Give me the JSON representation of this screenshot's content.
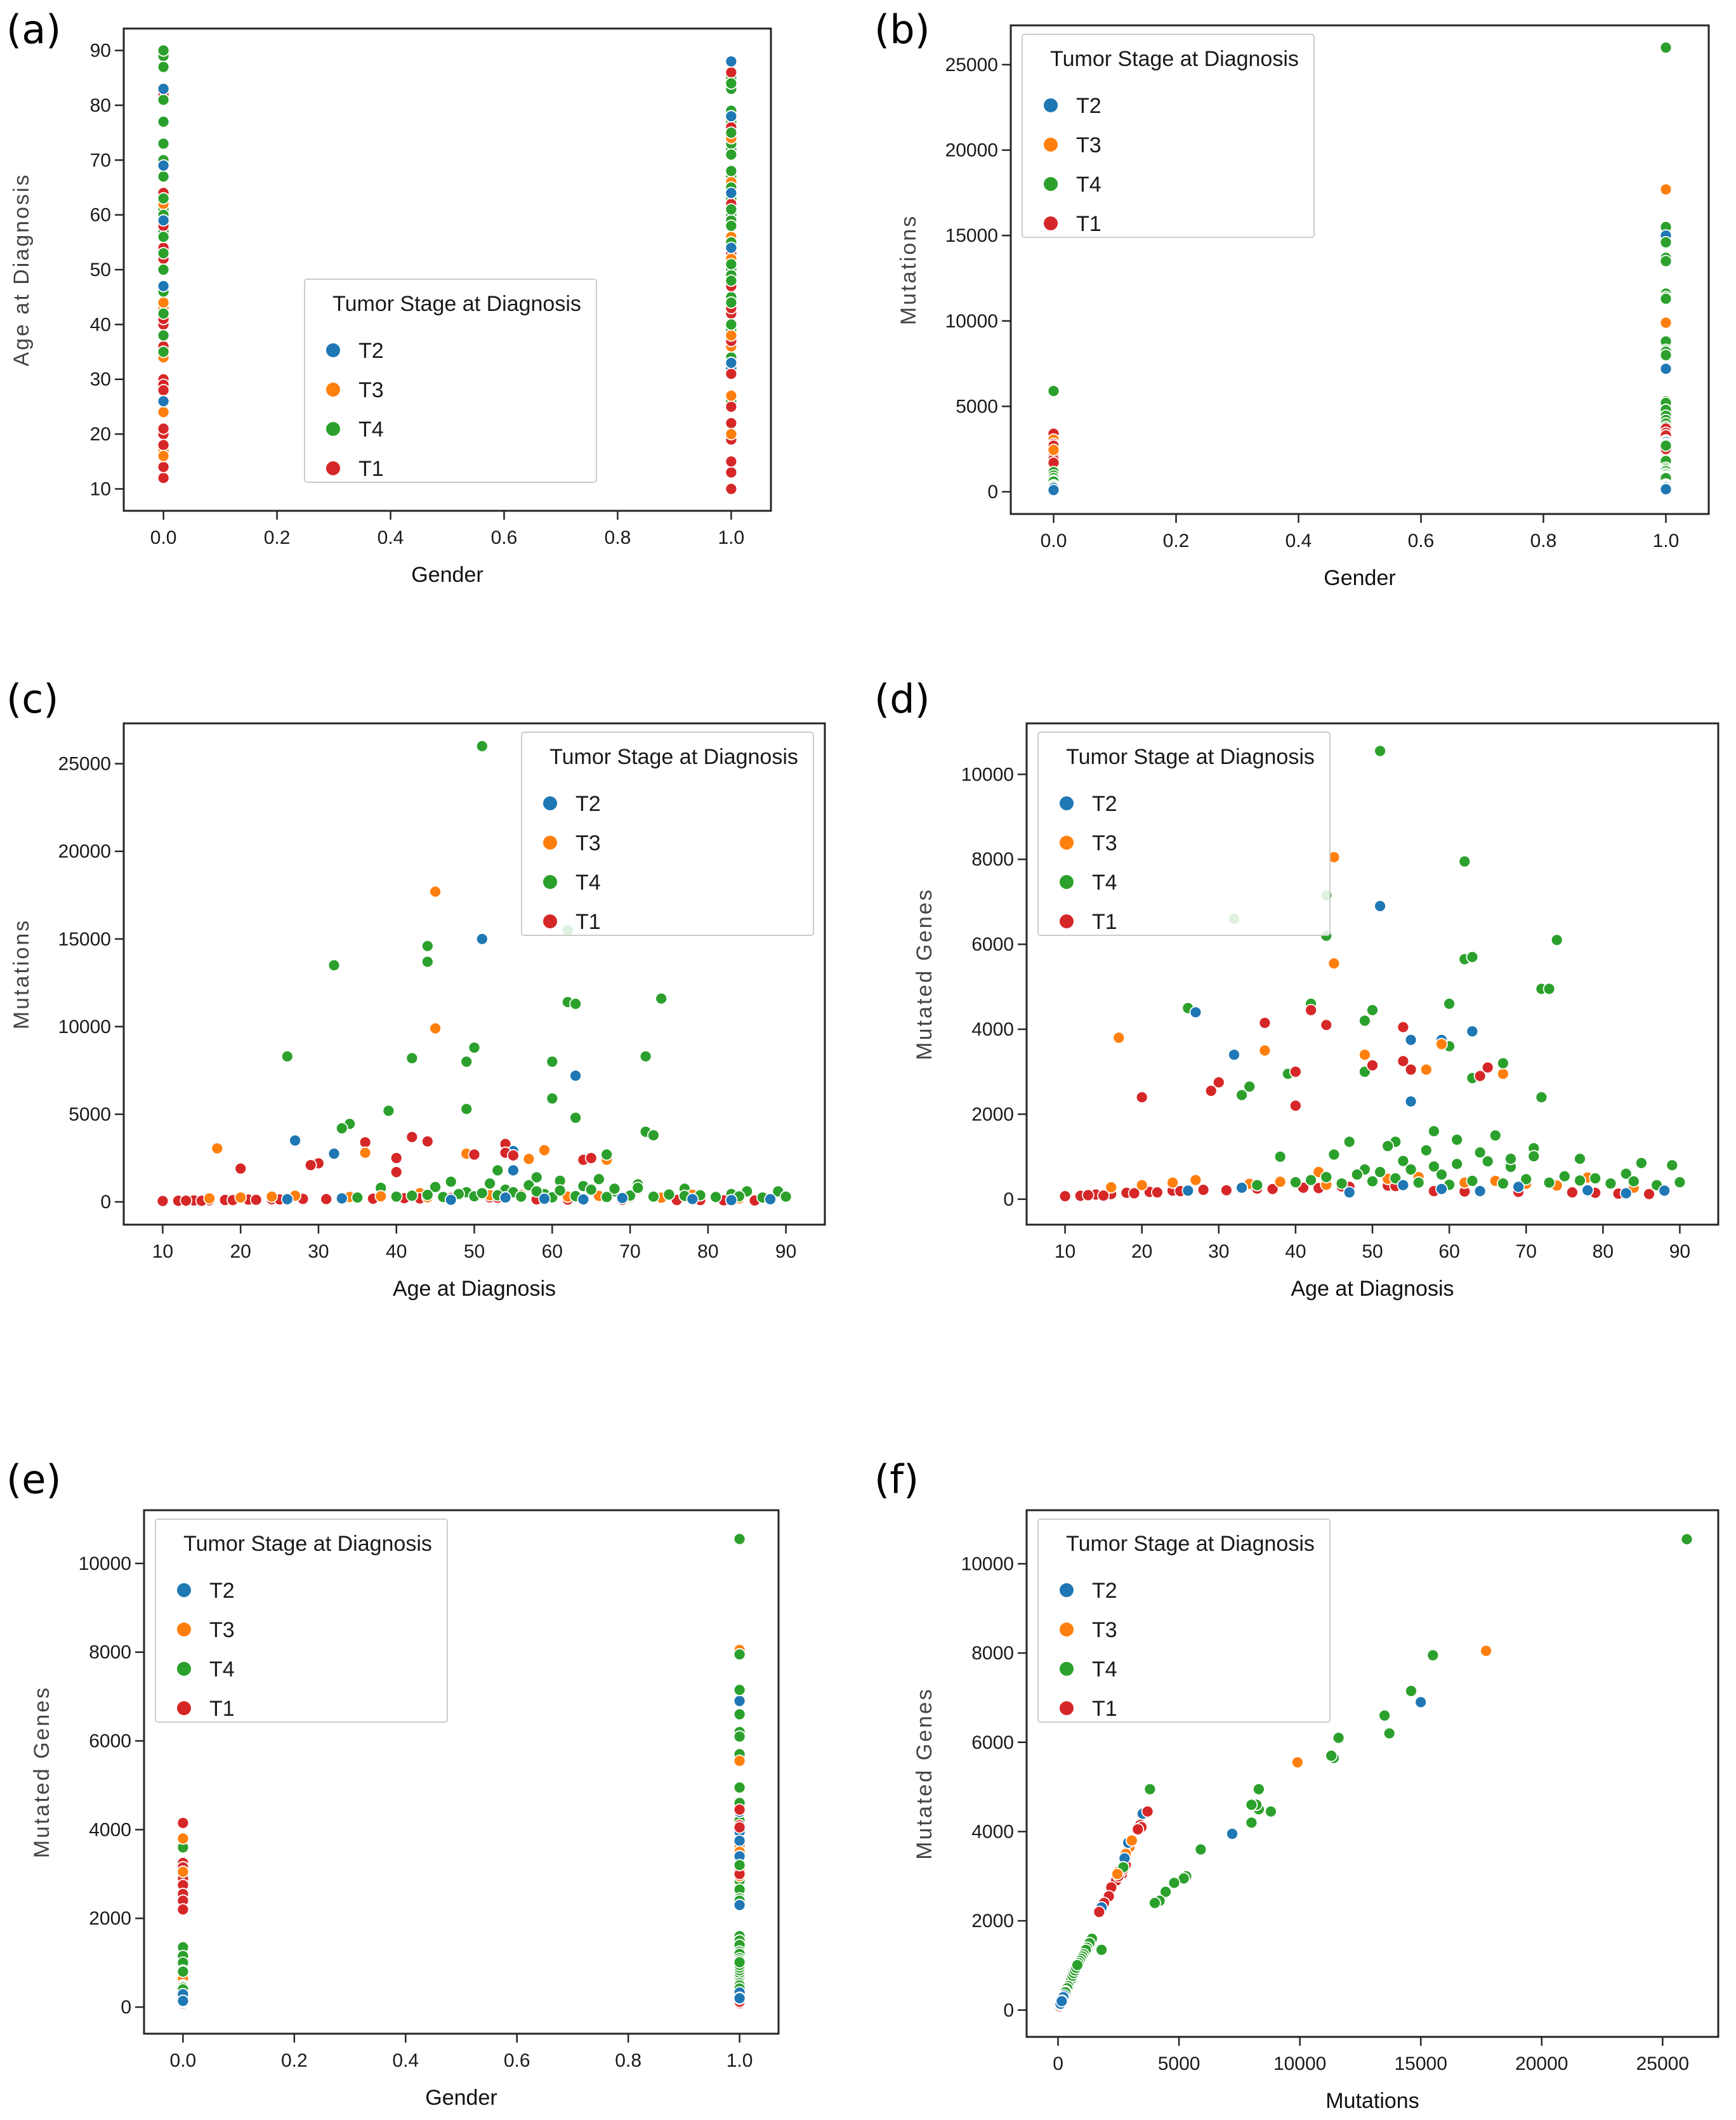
{
  "figure": {
    "background": "#ffffff",
    "border_color": "#262626",
    "tick_color": "#1a1a1a",
    "axis_label_color": "#111111",
    "y_label_color": "#444444",
    "legend_border": "#cccccc",
    "legend_bg_alpha": 0.85
  },
  "chart_data": {
    "type": "scatter",
    "legend_title": "Tumor Stage at Diagnosis",
    "legend_position_by_panel": [
      "center",
      "upper-left",
      "upper-right",
      "upper-left",
      "upper-left",
      "upper-left"
    ],
    "stages": [
      {
        "name": "T2",
        "color": "#1f77b4"
      },
      {
        "name": "T3",
        "color": "#ff7f0e"
      },
      {
        "name": "T4",
        "color": "#2ca02c"
      },
      {
        "name": "T1",
        "color": "#d62728"
      }
    ],
    "fields": [
      "stage",
      "gender",
      "age_at_diagnosis",
      "mutations",
      "mutated_genes"
    ],
    "patients": [
      [
        "T4",
        1,
        51,
        26000,
        10550
      ],
      [
        "T3",
        1,
        45,
        17700,
        8050
      ],
      [
        "T4",
        1,
        62,
        15500,
        7950
      ],
      [
        "T2",
        1,
        51,
        15000,
        6900
      ],
      [
        "T4",
        1,
        44,
        14600,
        7150
      ],
      [
        "T4",
        1,
        44,
        13700,
        6200
      ],
      [
        "T4",
        1,
        32,
        13500,
        6600
      ],
      [
        "T4",
        1,
        74,
        11600,
        6100
      ],
      [
        "T4",
        1,
        62,
        11400,
        5650
      ],
      [
        "T4",
        1,
        63,
        11300,
        5700
      ],
      [
        "T3",
        1,
        45,
        9900,
        5550
      ],
      [
        "T4",
        1,
        50,
        8800,
        4450
      ],
      [
        "T4",
        1,
        26,
        8300,
        4500
      ],
      [
        "T4",
        1,
        72,
        8300,
        4950
      ],
      [
        "T4",
        1,
        42,
        8200,
        4600
      ],
      [
        "T4",
        1,
        49,
        8000,
        4200
      ],
      [
        "T4",
        1,
        60,
        8000,
        4600
      ],
      [
        "T2",
        1,
        63,
        7200,
        3950
      ],
      [
        "T4",
        0,
        60,
        5900,
        3600
      ],
      [
        "T4",
        1,
        49,
        5300,
        3000
      ],
      [
        "T4",
        1,
        39,
        5200,
        2950
      ],
      [
        "T4",
        1,
        63,
        4800,
        2850
      ],
      [
        "T4",
        1,
        34,
        4450,
        2650
      ],
      [
        "T4",
        1,
        33,
        4200,
        2450
      ],
      [
        "T4",
        1,
        72,
        4000,
        2400
      ],
      [
        "T4",
        1,
        73,
        3800,
        4950
      ],
      [
        "T2",
        1,
        27,
        3500,
        4400
      ],
      [
        "T1",
        0,
        36,
        3400,
        4150
      ],
      [
        "T1",
        1,
        42,
        3700,
        4450
      ],
      [
        "T1",
        1,
        44,
        3450,
        4100
      ],
      [
        "T1",
        1,
        54,
        3300,
        4050
      ],
      [
        "T2",
        1,
        59,
        3000,
        3750
      ],
      [
        "T3",
        1,
        59,
        2950,
        3650
      ],
      [
        "T2",
        1,
        55,
        2900,
        3750
      ],
      [
        "T3",
        0,
        17,
        3050,
        3800
      ],
      [
        "T3",
        1,
        36,
        2800,
        3500
      ],
      [
        "T3",
        1,
        49,
        2750,
        3400
      ],
      [
        "T1",
        0,
        54,
        2800,
        3250
      ],
      [
        "T1",
        1,
        55,
        2650,
        3050
      ],
      [
        "T1",
        0,
        50,
        2700,
        3150
      ],
      [
        "T3",
        1,
        67,
        2400,
        2950
      ],
      [
        "T1",
        0,
        64,
        2400,
        2900
      ],
      [
        "T1",
        1,
        65,
        2500,
        3100
      ],
      [
        "T1",
        0,
        30,
        2200,
        2750
      ],
      [
        "T1",
        0,
        29,
        2100,
        2550
      ],
      [
        "T1",
        0,
        20,
        1900,
        2400
      ],
      [
        "T2",
        1,
        32,
        2750,
        3400
      ],
      [
        "T2",
        1,
        55,
        1800,
        2300
      ],
      [
        "T1",
        1,
        40,
        2500,
        3000
      ],
      [
        "T1",
        0,
        40,
        1700,
        2200
      ],
      [
        "T4",
        1,
        67,
        2700,
        3200
      ],
      [
        "T3",
        0,
        57,
        2450,
        3050
      ],
      [
        "T4",
        1,
        53,
        1800,
        1350
      ],
      [
        "T4",
        1,
        58,
        1400,
        1600
      ],
      [
        "T4",
        1,
        66,
        1300,
        1500
      ],
      [
        "T4",
        1,
        61,
        1200,
        1400
      ],
      [
        "T4",
        0,
        47,
        1150,
        1350
      ],
      [
        "T4",
        1,
        52,
        1050,
        1250
      ],
      [
        "T4",
        1,
        71,
        1000,
        1200
      ],
      [
        "T4",
        0,
        57,
        950,
        1150
      ],
      [
        "T4",
        1,
        64,
        900,
        1100
      ],
      [
        "T4",
        1,
        45,
        850,
        1050
      ],
      [
        "T4",
        0,
        38,
        800,
        1000
      ],
      [
        "T4",
        1,
        77,
        750,
        950
      ],
      [
        "T4",
        1,
        54,
        700,
        900
      ],
      [
        "T4",
        0,
        61,
        650,
        820
      ],
      [
        "T4",
        1,
        68,
        600,
        760
      ],
      [
        "T4",
        1,
        49,
        550,
        700
      ],
      [
        "T3",
        0,
        43,
        500,
        640
      ],
      [
        "T4",
        1,
        59,
        450,
        580
      ],
      [
        "T3",
        1,
        56,
        400,
        520
      ],
      [
        "T4",
        1,
        85,
        600,
        850
      ],
      [
        "T4",
        1,
        83,
        450,
        600
      ],
      [
        "T4",
        0,
        89,
        600,
        800
      ],
      [
        "T1",
        0,
        12,
        60,
        80
      ],
      [
        "T1",
        1,
        10,
        50,
        70
      ],
      [
        "T1",
        0,
        14,
        80,
        110
      ],
      [
        "T1",
        1,
        13,
        70,
        95
      ],
      [
        "T1",
        0,
        16,
        90,
        120
      ],
      [
        "T1",
        1,
        15,
        60,
        85
      ],
      [
        "T1",
        0,
        18,
        110,
        150
      ],
      [
        "T1",
        1,
        19,
        100,
        140
      ],
      [
        "T1",
        0,
        21,
        130,
        170
      ],
      [
        "T1",
        1,
        22,
        120,
        160
      ],
      [
        "T1",
        0,
        24,
        150,
        200
      ],
      [
        "T1",
        1,
        25,
        140,
        190
      ],
      [
        "T1",
        0,
        28,
        170,
        220
      ],
      [
        "T1",
        1,
        31,
        160,
        210
      ],
      [
        "T1",
        0,
        35,
        190,
        250
      ],
      [
        "T1",
        1,
        37,
        180,
        240
      ],
      [
        "T1",
        0,
        41,
        210,
        270
      ],
      [
        "T1",
        1,
        43,
        200,
        260
      ],
      [
        "T1",
        0,
        46,
        230,
        300
      ],
      [
        "T1",
        1,
        47,
        220,
        290
      ],
      [
        "T1",
        0,
        52,
        250,
        320
      ],
      [
        "T1",
        1,
        53,
        240,
        310
      ],
      [
        "T1",
        0,
        58,
        140,
        190
      ],
      [
        "T1",
        1,
        62,
        130,
        180
      ],
      [
        "T1",
        0,
        69,
        120,
        170
      ],
      [
        "T1",
        1,
        76,
        110,
        160
      ],
      [
        "T1",
        1,
        79,
        100,
        150
      ],
      [
        "T1",
        0,
        82,
        90,
        130
      ],
      [
        "T1",
        1,
        86,
        80,
        120
      ],
      [
        "T3",
        0,
        16,
        200,
        280
      ],
      [
        "T3",
        1,
        20,
        250,
        330
      ],
      [
        "T3",
        0,
        24,
        300,
        390
      ],
      [
        "T3",
        1,
        27,
        350,
        450
      ],
      [
        "T3",
        0,
        34,
        280,
        360
      ],
      [
        "T3",
        1,
        38,
        320,
        410
      ],
      [
        "T3",
        0,
        44,
        260,
        340
      ],
      [
        "T3",
        1,
        52,
        380,
        480
      ],
      [
        "T3",
        0,
        62,
        300,
        390
      ],
      [
        "T3",
        1,
        66,
        340,
        430
      ],
      [
        "T3",
        0,
        70,
        280,
        360
      ],
      [
        "T3",
        1,
        74,
        240,
        320
      ],
      [
        "T3",
        1,
        78,
        400,
        510
      ],
      [
        "T3",
        0,
        81,
        300,
        390
      ],
      [
        "T3",
        1,
        84,
        200,
        270
      ],
      [
        "T4",
        0,
        35,
        250,
        330
      ],
      [
        "T4",
        1,
        40,
        300,
        400
      ],
      [
        "T4",
        0,
        42,
        350,
        450
      ],
      [
        "T4",
        1,
        44,
        400,
        520
      ],
      [
        "T4",
        0,
        46,
        280,
        370
      ],
      [
        "T4",
        1,
        48,
        450,
        580
      ],
      [
        "T4",
        0,
        50,
        320,
        420
      ],
      [
        "T4",
        1,
        51,
        500,
        640
      ],
      [
        "T4",
        0,
        53,
        380,
        490
      ],
      [
        "T4",
        1,
        55,
        550,
        700
      ],
      [
        "T4",
        0,
        56,
        300,
        390
      ],
      [
        "T4",
        1,
        58,
        600,
        770
      ],
      [
        "T4",
        0,
        60,
        260,
        340
      ],
      [
        "T4",
        1,
        61,
        650,
        830
      ],
      [
        "T4",
        0,
        63,
        330,
        430
      ],
      [
        "T4",
        1,
        65,
        700,
        890
      ],
      [
        "T4",
        0,
        67,
        280,
        370
      ],
      [
        "T4",
        1,
        68,
        750,
        950
      ],
      [
        "T4",
        0,
        70,
        360,
        470
      ],
      [
        "T4",
        1,
        71,
        800,
        1010
      ],
      [
        "T4",
        0,
        73,
        300,
        390
      ],
      [
        "T4",
        1,
        75,
        420,
        540
      ],
      [
        "T4",
        0,
        77,
        340,
        440
      ],
      [
        "T4",
        1,
        79,
        380,
        490
      ],
      [
        "T4",
        0,
        81,
        280,
        370
      ],
      [
        "T4",
        1,
        84,
        320,
        420
      ],
      [
        "T4",
        0,
        87,
        250,
        330
      ],
      [
        "T4",
        0,
        90,
        300,
        400
      ],
      [
        "T2",
        0,
        26,
        150,
        200
      ],
      [
        "T2",
        1,
        33,
        200,
        270
      ],
      [
        "T2",
        0,
        47,
        120,
        160
      ],
      [
        "T2",
        1,
        54,
        250,
        330
      ],
      [
        "T2",
        0,
        59,
        180,
        240
      ],
      [
        "T2",
        1,
        64,
        140,
        190
      ],
      [
        "T2",
        0,
        69,
        220,
        290
      ],
      [
        "T2",
        1,
        78,
        160,
        210
      ],
      [
        "T2",
        0,
        83,
        100,
        140
      ],
      [
        "T2",
        1,
        88,
        150,
        200
      ]
    ],
    "panels": [
      {
        "tag": "(a)",
        "x": "gender",
        "y": "age_at_diagnosis",
        "xlabel": "Gender",
        "ylabel": "Age at Diagnosis",
        "xlim": [
          -0.07,
          1.07
        ],
        "ylim": [
          6,
          94
        ],
        "xticks": [
          0,
          0.2,
          0.4,
          0.6,
          0.8,
          1
        ],
        "xtick_labels": [
          "0.0",
          "0.2",
          "0.4",
          "0.6",
          "0.8",
          "1.0"
        ],
        "yticks": [
          10,
          20,
          30,
          40,
          50,
          60,
          70,
          80,
          90
        ],
        "ytick_labels": [
          "10",
          "20",
          "30",
          "40",
          "50",
          "60",
          "70",
          "80",
          "90"
        ]
      },
      {
        "tag": "(b)",
        "x": "gender",
        "y": "mutations",
        "xlabel": "Gender",
        "ylabel": "Mutations",
        "xlim": [
          -0.07,
          1.07
        ],
        "ylim": [
          -1300,
          27300
        ],
        "xticks": [
          0,
          0.2,
          0.4,
          0.6,
          0.8,
          1
        ],
        "xtick_labels": [
          "0.0",
          "0.2",
          "0.4",
          "0.6",
          "0.8",
          "1.0"
        ],
        "yticks": [
          0,
          5000,
          10000,
          15000,
          20000,
          25000
        ],
        "ytick_labels": [
          "0",
          "5000",
          "10000",
          "15000",
          "20000",
          "25000"
        ]
      },
      {
        "tag": "(c)",
        "x": "age_at_diagnosis",
        "y": "mutations",
        "xlabel": "Age at Diagnosis",
        "ylabel": "Mutations",
        "xlim": [
          5,
          95
        ],
        "ylim": [
          -1300,
          27300
        ],
        "xticks": [
          10,
          20,
          30,
          40,
          50,
          60,
          70,
          80,
          90
        ],
        "xtick_labels": [
          "10",
          "20",
          "30",
          "40",
          "50",
          "60",
          "70",
          "80",
          "90"
        ],
        "yticks": [
          0,
          5000,
          10000,
          15000,
          20000,
          25000
        ],
        "ytick_labels": [
          "0",
          "5000",
          "10000",
          "15000",
          "20000",
          "25000"
        ]
      },
      {
        "tag": "(d)",
        "x": "age_at_diagnosis",
        "y": "mutated_genes",
        "xlabel": "Age at Diagnosis",
        "ylabel": "Mutated Genes",
        "xlim": [
          5,
          95
        ],
        "ylim": [
          -600,
          11200
        ],
        "xticks": [
          10,
          20,
          30,
          40,
          50,
          60,
          70,
          80,
          90
        ],
        "xtick_labels": [
          "10",
          "20",
          "30",
          "40",
          "50",
          "60",
          "70",
          "80",
          "90"
        ],
        "yticks": [
          0,
          2000,
          4000,
          6000,
          8000,
          10000
        ],
        "ytick_labels": [
          "0",
          "2000",
          "4000",
          "6000",
          "8000",
          "10000"
        ]
      },
      {
        "tag": "(e)",
        "x": "gender",
        "y": "mutated_genes",
        "xlabel": "Gender",
        "ylabel": "Mutated Genes",
        "xlim": [
          -0.07,
          1.07
        ],
        "ylim": [
          -600,
          11200
        ],
        "xticks": [
          0,
          0.2,
          0.4,
          0.6,
          0.8,
          1
        ],
        "xtick_labels": [
          "0.0",
          "0.2",
          "0.4",
          "0.6",
          "0.8",
          "1.0"
        ],
        "yticks": [
          0,
          2000,
          4000,
          6000,
          8000,
          10000
        ],
        "ytick_labels": [
          "0",
          "2000",
          "4000",
          "6000",
          "8000",
          "10000"
        ]
      },
      {
        "tag": "(f)",
        "x": "mutations",
        "y": "mutated_genes",
        "xlabel": "Mutations",
        "ylabel": "Mutated Genes",
        "xlim": [
          -1300,
          27300
        ],
        "ylim": [
          -600,
          11200
        ],
        "xticks": [
          0,
          5000,
          10000,
          15000,
          20000,
          25000
        ],
        "xtick_labels": [
          "0",
          "5000",
          "10000",
          "15000",
          "20000",
          "25000"
        ],
        "yticks": [
          0,
          2000,
          4000,
          6000,
          8000,
          10000
        ],
        "ytick_labels": [
          "0",
          "2000",
          "4000",
          "6000",
          "8000",
          "10000"
        ]
      }
    ]
  }
}
